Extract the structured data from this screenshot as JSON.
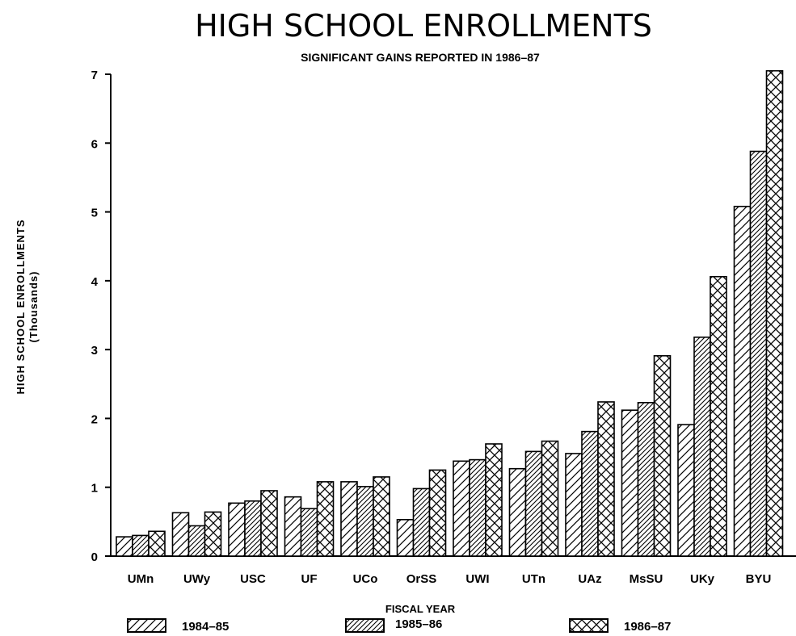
{
  "chart_data": {
    "type": "bar",
    "title": "HIGH SCHOOL ENROLLMENTS",
    "subtitle": "SIGNIFICANT GAINS REPORTED IN 1986–87",
    "xlabel": "FISCAL YEAR",
    "ylabel": "HIGH SCHOOL ENROLLMENTS",
    "ylabel_units": "(Thousands)",
    "categories": [
      "UMn",
      "UWy",
      "USC",
      "UF",
      "UCo",
      "OrSS",
      "UWI",
      "UTn",
      "UAz",
      "MsSU",
      "UKy",
      "BYU"
    ],
    "series": [
      {
        "name": "1984–85",
        "pattern": "single-hatch",
        "values": [
          0.28,
          0.63,
          0.77,
          0.86,
          1.08,
          0.53,
          1.38,
          1.27,
          1.49,
          2.12,
          1.91,
          5.08
        ]
      },
      {
        "name": "1985–86",
        "pattern": "double-hatch",
        "values": [
          0.3,
          0.44,
          0.8,
          0.69,
          1.01,
          0.98,
          1.4,
          1.52,
          1.81,
          2.23,
          3.18,
          5.88
        ]
      },
      {
        "name": "1986–87",
        "pattern": "crosshatch",
        "values": [
          0.36,
          0.64,
          0.95,
          1.08,
          1.15,
          1.25,
          1.63,
          1.67,
          2.24,
          2.91,
          4.06,
          7.05
        ]
      }
    ],
    "ylim": [
      0,
      7
    ],
    "yticks": [
      0,
      1,
      2,
      3,
      4,
      5,
      6,
      7
    ],
    "grid": false,
    "legend_position": "bottom"
  }
}
